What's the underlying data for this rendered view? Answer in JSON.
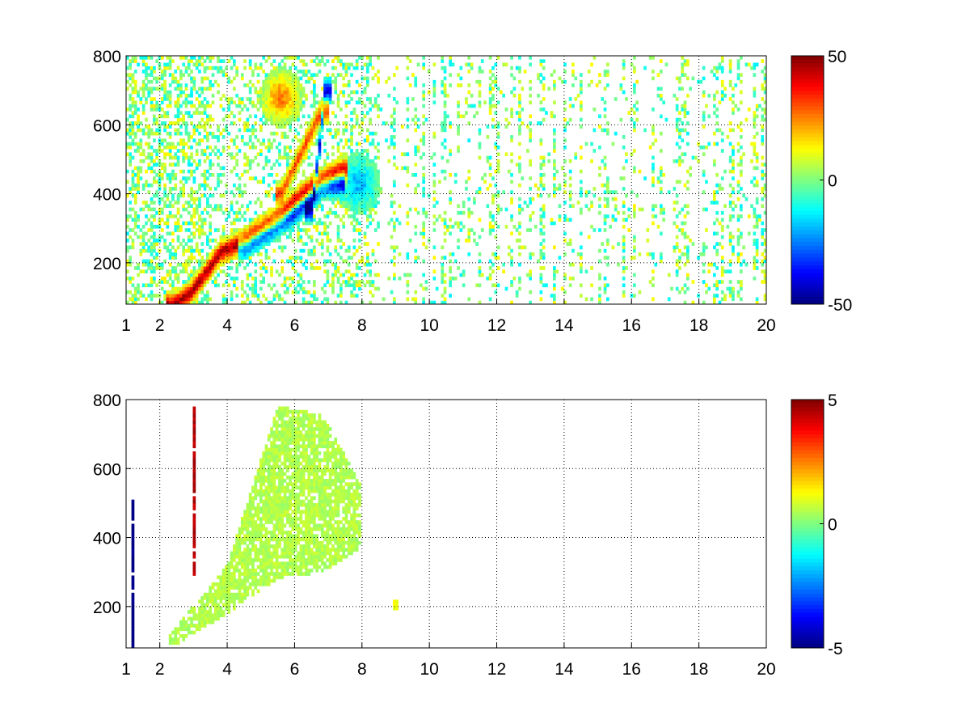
{
  "chart_data": [
    {
      "type": "heatmap",
      "title": "",
      "xlabel": "",
      "ylabel": "",
      "xlim": [
        1,
        20
      ],
      "ylim": [
        80,
        800
      ],
      "x_ticks": [
        "1",
        "2",
        "4",
        "6",
        "8",
        "10",
        "12",
        "14",
        "16",
        "18",
        "20"
      ],
      "y_ticks": [
        "200",
        "400",
        "600",
        "800"
      ],
      "grid": true,
      "colormap": "jet",
      "color_range": [
        -50,
        50
      ],
      "colorbar_ticks": [
        "50",
        "0",
        "-50"
      ],
      "features": [
        {
          "kind": "ridge",
          "sign": 1,
          "x": [
            2.4,
            2.9,
            3.4,
            3.8,
            4.4,
            5.0,
            5.5,
            6.0,
            6.5,
            7.0,
            7.4
          ],
          "y": [
            80,
            110,
            175,
            230,
            260,
            300,
            330,
            380,
            420,
            450,
            470
          ],
          "amp": 45
        },
        {
          "kind": "ridge",
          "sign": -1,
          "x": [
            4.5,
            5.2,
            5.8,
            6.4,
            6.8,
            7.3
          ],
          "y": [
            245,
            290,
            330,
            380,
            420,
            430
          ],
          "amp": 40
        },
        {
          "kind": "ridge",
          "sign": 1,
          "x": [
            5.6,
            6.0,
            6.4,
            6.8
          ],
          "y": [
            400,
            480,
            560,
            640
          ],
          "amp": 30
        },
        {
          "kind": "ridge",
          "sign": -1,
          "x": [
            6.5,
            6.7,
            6.9
          ],
          "y": [
            350,
            500,
            700
          ],
          "amp": 40
        },
        {
          "kind": "blob",
          "sign": 1,
          "x": 5.6,
          "y": 680,
          "amp": 25
        },
        {
          "kind": "blob",
          "sign": -1,
          "x": 7.9,
          "y": 430,
          "amp": 20
        }
      ]
    },
    {
      "type": "heatmap",
      "title": "",
      "xlabel": "",
      "ylabel": "",
      "xlim": [
        1,
        20
      ],
      "ylim": [
        80,
        800
      ],
      "x_ticks": [
        "1",
        "2",
        "4",
        "6",
        "8",
        "10",
        "12",
        "14",
        "16",
        "18",
        "20"
      ],
      "y_ticks": [
        "200",
        "400",
        "600",
        "800"
      ],
      "grid": true,
      "colormap": "jet",
      "color_range": [
        -5,
        5
      ],
      "colorbar_ticks": [
        "5",
        "0",
        "-5"
      ],
      "features": [
        {
          "kind": "region",
          "x": [
            2.3,
            4.0,
            5.5,
            6.8,
            8.0
          ],
          "y_low": [
            80,
            180,
            280,
            300,
            370
          ],
          "y_high": [
            120,
            320,
            780,
            760,
            550
          ],
          "value": 0.5
        },
        {
          "kind": "line",
          "x": 3.0,
          "y_low": 280,
          "y_high": 780,
          "value": 4.5
        },
        {
          "kind": "line",
          "x": 1.2,
          "y_low": 80,
          "y_high": 510,
          "value": -5
        },
        {
          "kind": "blob",
          "x": 9.0,
          "y": 205,
          "value": 1
        }
      ]
    }
  ]
}
